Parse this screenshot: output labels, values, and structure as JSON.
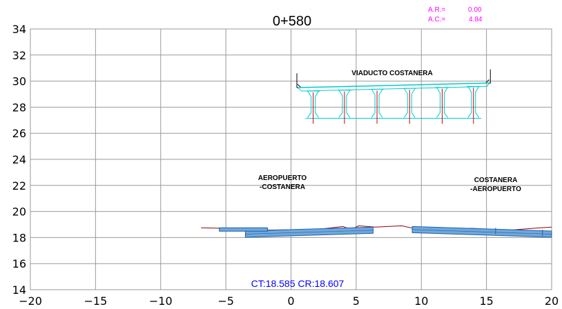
{
  "station": "0+580",
  "alignment": {
    "ar_label": "A.R.=",
    "ar_value": "0.00",
    "ac_label": "A.C.=",
    "ac_value": "4.84"
  },
  "labels": {
    "viaduct": "VIADUCTO  COSTANERA",
    "left_line1": "AEROPUERTO",
    "left_line2": "-COSTANERA",
    "right_line1": "COSTANERA",
    "right_line2": "-AEROPUERTO"
  },
  "footer": "CT:18.585  CR:18.607",
  "colors": {
    "grid": "#999999",
    "text": "#000000",
    "magenta": "#ff00ff",
    "viaduct": "#00cccc",
    "terrain": "#8b0000",
    "road_fill": "#6fa8dc",
    "road_stroke": "#1f5fa8",
    "footer": "#0000ff"
  },
  "chart_data": {
    "type": "cross-section",
    "xlim": [
      -20,
      20
    ],
    "ylim": [
      14,
      34
    ],
    "x_ticks": [
      "-20",
      "-15",
      "-10",
      "-5",
      "0",
      "5",
      "10",
      "15",
      "20"
    ],
    "y_ticks": [
      "14",
      "16",
      "18",
      "20",
      "22",
      "24",
      "26",
      "28",
      "30",
      "32",
      "34"
    ],
    "viaduct": {
      "x_range": [
        0.5,
        15.2
      ],
      "deck_top_left": 29.5,
      "deck_top_right": 29.85,
      "girder_x": [
        1.7,
        4.1,
        6.6,
        9.1,
        11.6,
        14.0
      ]
    },
    "terrain": [
      [
        -6.9,
        18.75
      ],
      [
        -5.0,
        18.7
      ],
      [
        -3.5,
        18.55
      ],
      [
        2.0,
        18.62
      ],
      [
        4.0,
        18.85
      ],
      [
        4.6,
        18.62
      ],
      [
        5.2,
        18.9
      ],
      [
        6.5,
        18.8
      ],
      [
        8.5,
        18.9
      ],
      [
        9.2,
        18.75
      ],
      [
        14.0,
        18.7
      ],
      [
        16.5,
        18.55
      ],
      [
        18.5,
        18.7
      ],
      [
        20.0,
        18.8
      ]
    ],
    "roads": [
      {
        "left_x": -3.5,
        "right_x": 6.3,
        "left_y": 18.5,
        "right_y": 18.8
      },
      {
        "left_x": 9.3,
        "right_x": 20.0,
        "left_y": 18.85,
        "right_y": 18.5
      }
    ]
  }
}
